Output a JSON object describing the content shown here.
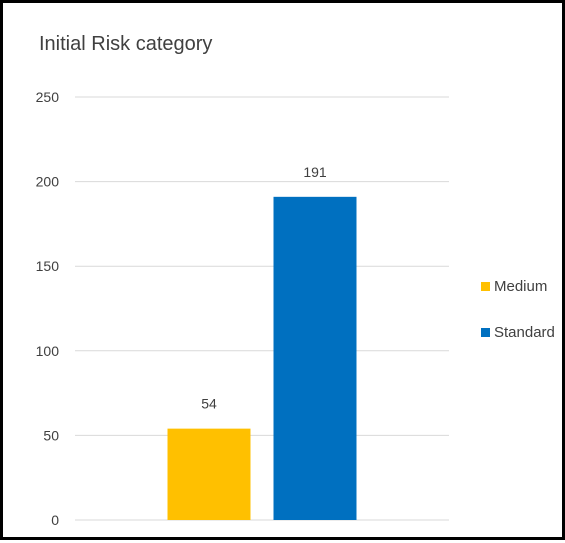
{
  "chart_data": {
    "type": "bar",
    "title": "Initial Risk category",
    "categories": [
      "Medium",
      "Standard"
    ],
    "values": [
      54,
      191
    ],
    "data_labels": [
      "54",
      "191"
    ],
    "series": [
      {
        "name": "Medium",
        "value": 54,
        "color": "#FFC000"
      },
      {
        "name": "Standard",
        "value": 191,
        "color": "#0070C0"
      }
    ],
    "y_ticks": [
      "0",
      "50",
      "100",
      "150",
      "200",
      "250"
    ],
    "ylim": [
      0,
      250
    ],
    "grid": true,
    "legend_position": "right"
  }
}
